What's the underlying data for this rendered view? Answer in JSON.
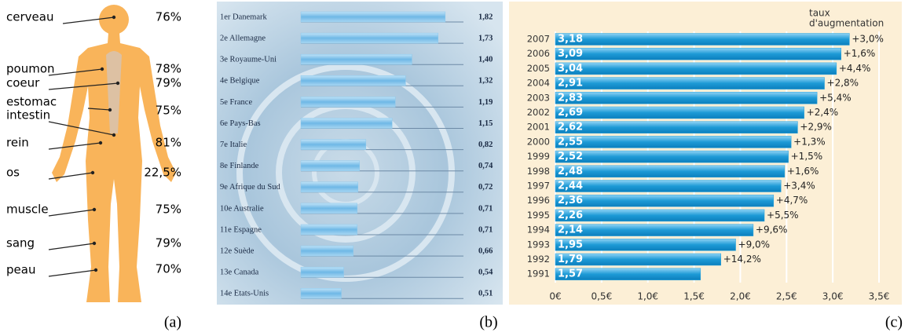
{
  "chart_data": [
    {
      "type": "diagram",
      "caption": "(a)",
      "items": [
        {
          "labels": [
            "cerveau"
          ],
          "value": "76%"
        },
        {
          "labels": [
            "poumon"
          ],
          "value": "78%"
        },
        {
          "labels": [
            "coeur"
          ],
          "value": "79%"
        },
        {
          "labels": [
            "estomac",
            "intestin"
          ],
          "value": "75%"
        },
        {
          "labels": [
            "rein"
          ],
          "value": "81%"
        },
        {
          "labels": [
            "os"
          ],
          "value": "22,5%"
        },
        {
          "labels": [
            "muscle"
          ],
          "value": "75%"
        },
        {
          "labels": [
            "sang"
          ],
          "value": "79%"
        },
        {
          "labels": [
            "peau"
          ],
          "value": "70%"
        }
      ]
    },
    {
      "type": "bar",
      "caption": "(b)",
      "color": "#8cc8ec",
      "categories": [
        "1er Danemark",
        "2e Allemagne",
        "3e Royaume-Uni",
        "4e Belgique",
        "5e France",
        "6e Pays-Bas",
        "7e Italie",
        "8e Finlande",
        "9e Afrique du Sud",
        "10e Australie",
        "11e Espagne",
        "12e Suède",
        "13e Canada",
        "14e Etats-Unis"
      ],
      "values": [
        1.82,
        1.73,
        1.4,
        1.32,
        1.19,
        1.15,
        0.82,
        0.74,
        0.72,
        0.71,
        0.71,
        0.66,
        0.54,
        0.51
      ],
      "value_labels": [
        "1,82",
        "1,73",
        "1,40",
        "1,32",
        "1,19",
        "1,15",
        "0,82",
        "0,74",
        "0,72",
        "0,71",
        "0,71",
        "0,66",
        "0,54",
        "0,51"
      ]
    },
    {
      "type": "bar",
      "caption": "(c)",
      "color": "#29a3dc",
      "title_lines": [
        "taux",
        "d'augmentation"
      ],
      "categories": [
        "2007",
        "2006",
        "2005",
        "2004",
        "2003",
        "2002",
        "2001",
        "2000",
        "1999",
        "1998",
        "1997",
        "1996",
        "1995",
        "1994",
        "1993",
        "1992",
        "1991"
      ],
      "values": [
        3.18,
        3.09,
        3.04,
        2.91,
        2.83,
        2.69,
        2.62,
        2.55,
        2.52,
        2.48,
        2.44,
        2.36,
        2.26,
        2.14,
        1.95,
        1.79,
        1.57
      ],
      "value_labels": [
        "3,18",
        "3,09",
        "3,04",
        "2,91",
        "2,83",
        "2,69",
        "2,62",
        "2,55",
        "2,52",
        "2,48",
        "2,44",
        "2,36",
        "2,26",
        "2,14",
        "1,95",
        "1,79",
        "1,57"
      ],
      "growth": [
        "+3,0%",
        "+1,6%",
        "+4,4%",
        "+2,8%",
        "+5,4%",
        "+2,4%",
        "+2,9%",
        "+1,3%",
        "+1,5%",
        "+1,6%",
        "+3,4%",
        "+4,7%",
        "+5,5%",
        "+9,6%",
        "+9,0%",
        "+14,2%",
        null
      ],
      "xlim": [
        0,
        3.5
      ],
      "xticks": [
        {
          "value": 0,
          "label": "0€"
        },
        {
          "value": 0.5,
          "label": "0,5€"
        },
        {
          "value": 1,
          "label": "1,0€"
        },
        {
          "value": 1.5,
          "label": "1,5€"
        },
        {
          "value": 2,
          "label": "2,0€"
        },
        {
          "value": 2.5,
          "label": "2,5€"
        },
        {
          "value": 3,
          "label": "3,0€"
        },
        {
          "value": 3.5,
          "label": "3,5€"
        }
      ],
      "grid": true
    }
  ]
}
